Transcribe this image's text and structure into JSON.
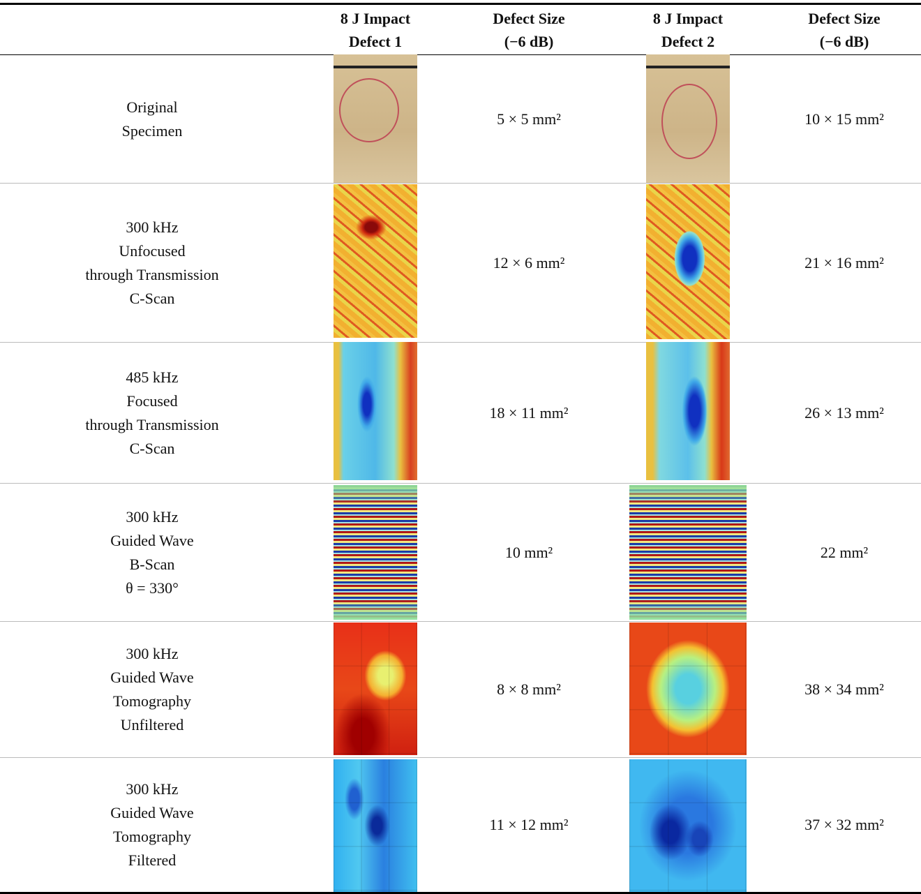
{
  "table": {
    "header": [
      [],
      [
        "8 J Impact",
        "Defect 1"
      ],
      [
        "Defect Size",
        "(−6 dB)"
      ],
      [
        "8 J Impact",
        "Defect 2"
      ],
      [
        "Defect Size",
        "(−6 dB)"
      ]
    ],
    "rows": [
      [
        [
          "Original",
          "Specimen"
        ],
        "5 × 5 mm²",
        "10 × 15 mm²"
      ],
      [
        [
          "300 kHz",
          "Unfocused",
          "through Transmission",
          "C-Scan"
        ],
        "12 × 6 mm²",
        "21 × 16 mm²"
      ],
      [
        [
          "485 kHz",
          "Focused",
          "through Transmission",
          "C-Scan"
        ],
        "18 × 11 mm²",
        "26 × 13 mm²"
      ],
      [
        [
          "300 kHz",
          "Guided Wave",
          "B-Scan",
          "θ = 330°"
        ],
        "10 mm²",
        "22 mm²"
      ],
      [
        [
          "300 kHz",
          "Guided Wave",
          "Tomography",
          "Unfiltered"
        ],
        "8 × 8 mm²",
        "38 × 34 mm²"
      ],
      [
        [
          "300 kHz",
          "Guided Wave",
          "Tomography",
          "Filtered"
        ],
        "11 × 12 mm²",
        "37 × 32 mm²"
      ]
    ]
  }
}
